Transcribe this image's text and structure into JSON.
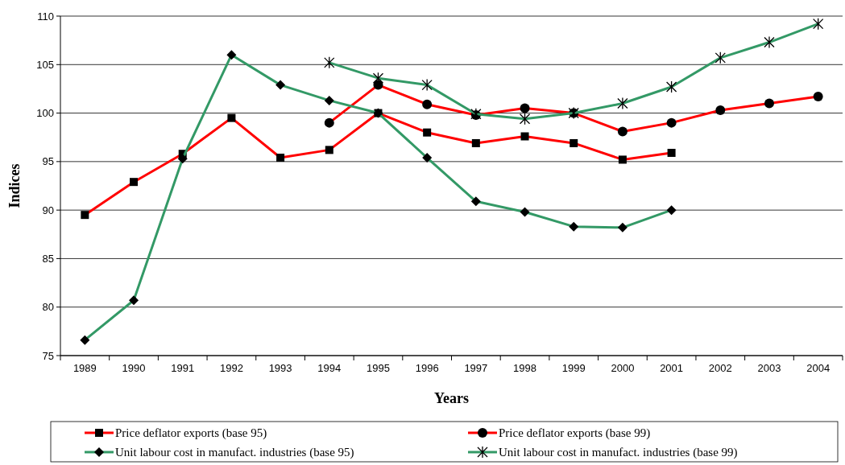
{
  "chart_data": {
    "type": "line",
    "xlabel": "Years",
    "ylabel": "Indices",
    "categories": [
      "1989",
      "1990",
      "1991",
      "1992",
      "1993",
      "1994",
      "1995",
      "1996",
      "1997",
      "1998",
      "1999",
      "2000",
      "2001",
      "2002",
      "2003",
      "2004"
    ],
    "ylim": [
      75,
      110
    ],
    "yticks": [
      75,
      80,
      85,
      90,
      95,
      100,
      105,
      110
    ],
    "grid": "y",
    "legend": "bottom",
    "series": [
      {
        "name": "Price deflator exports (base 95)",
        "color": "#ff0000",
        "marker": "square",
        "values": [
          89.5,
          92.9,
          95.8,
          99.5,
          95.4,
          96.2,
          100,
          98.0,
          96.9,
          97.6,
          96.9,
          95.2,
          95.9,
          null,
          null,
          null
        ]
      },
      {
        "name": "Price deflator exports (base 99)",
        "color": "#ff0000",
        "marker": "circle",
        "values": [
          null,
          null,
          null,
          null,
          null,
          99.0,
          102.9,
          100.9,
          99.8,
          100.5,
          100,
          98.1,
          99.0,
          100.3,
          101.0,
          101.7
        ]
      },
      {
        "name": "Unit labour cost in manufact. industries (base 95)",
        "color": "#339966",
        "marker": "diamond",
        "values": [
          76.6,
          80.7,
          95.3,
          106.0,
          102.9,
          101.3,
          100,
          95.4,
          90.9,
          89.8,
          88.3,
          88.2,
          90.0,
          null,
          null,
          null
        ]
      },
      {
        "name": "Unit labour cost in manufact. industries (base 99)",
        "color": "#339966",
        "marker": "cross",
        "values": [
          null,
          null,
          null,
          null,
          null,
          105.2,
          103.6,
          102.9,
          99.9,
          99.4,
          100,
          101.0,
          102.7,
          105.7,
          107.3,
          109.2
        ]
      }
    ]
  }
}
